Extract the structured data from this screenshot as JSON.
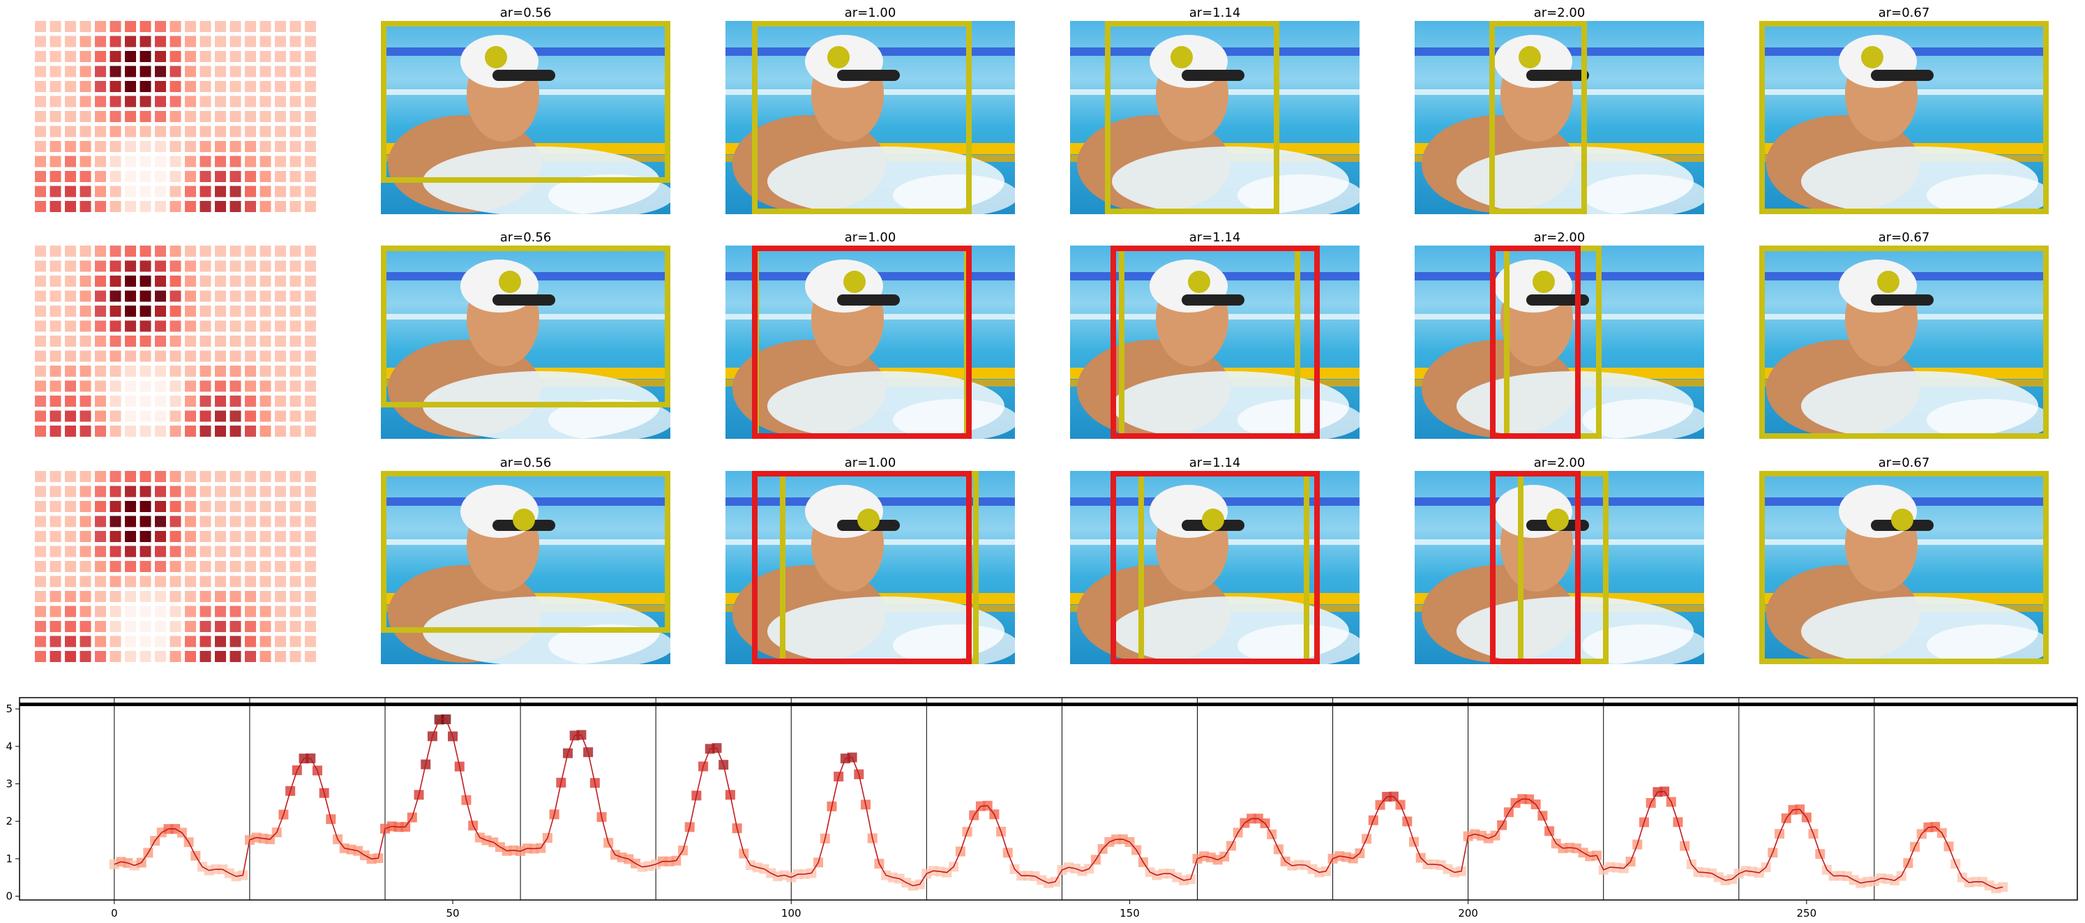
{
  "panels": {
    "column_titles": [
      "ar=0.56",
      "ar=1.00",
      "ar=1.14",
      "ar=2.00",
      "ar=0.67"
    ],
    "rows": 3,
    "colors": {
      "accent_box": "#c8be14",
      "alt_box": "#e41a1c",
      "heat_low": "#fff5f0",
      "heat_high": "#67000d"
    }
  },
  "chart_data": {
    "type": "line",
    "xlim": [
      -14,
      290
    ],
    "ylim": [
      -0.1,
      5.3
    ],
    "xticks": [
      0,
      50,
      100,
      150,
      200,
      250
    ],
    "yticks": [
      0,
      1,
      2,
      3,
      4,
      5
    ],
    "hline_y": 5.12,
    "vlines": [
      0,
      20,
      40,
      60,
      80,
      100,
      120,
      140,
      160,
      180,
      200,
      220,
      240,
      260
    ],
    "grid": false,
    "series": [
      {
        "x": [
          0,
          20,
          40,
          60,
          80,
          100,
          120,
          140,
          160,
          180,
          200,
          220,
          240,
          260
        ],
        "y": [
          0.85,
          1.5,
          1.8,
          1.2,
          0.85,
          0.5,
          0.6,
          0.7,
          1.0,
          1.0,
          1.6,
          0.7,
          0.6,
          0.4
        ]
      }
    ]
  }
}
